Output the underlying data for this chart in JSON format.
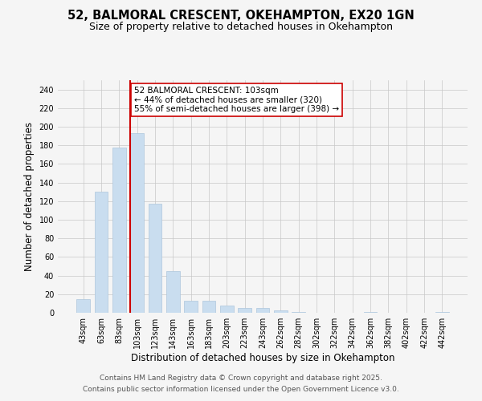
{
  "title1": "52, BALMORAL CRESCENT, OKEHAMPTON, EX20 1GN",
  "title2": "Size of property relative to detached houses in Okehampton",
  "xlabel": "Distribution of detached houses by size in Okehampton",
  "ylabel": "Number of detached properties",
  "categories": [
    "43sqm",
    "63sqm",
    "83sqm",
    "103sqm",
    "123sqm",
    "143sqm",
    "163sqm",
    "183sqm",
    "203sqm",
    "223sqm",
    "243sqm",
    "262sqm",
    "282sqm",
    "302sqm",
    "322sqm",
    "342sqm",
    "362sqm",
    "382sqm",
    "402sqm",
    "422sqm",
    "442sqm"
  ],
  "values": [
    15,
    130,
    178,
    193,
    117,
    45,
    13,
    13,
    8,
    5,
    5,
    3,
    1,
    0,
    0,
    0,
    1,
    0,
    0,
    0,
    1
  ],
  "bar_color": "#c9ddef",
  "bar_edge_color": "#aec6dc",
  "vline_color": "#cc0000",
  "annotation_text": "52 BALMORAL CRESCENT: 103sqm\n← 44% of detached houses are smaller (320)\n55% of semi-detached houses are larger (398) →",
  "annotation_box_color": "#ffffff",
  "annotation_box_edge": "#cc0000",
  "ylim": [
    0,
    250
  ],
  "yticks": [
    0,
    20,
    40,
    60,
    80,
    100,
    120,
    140,
    160,
    180,
    200,
    220,
    240
  ],
  "grid_color": "#c8c8c8",
  "background_color": "#f5f5f5",
  "footer1": "Contains HM Land Registry data © Crown copyright and database right 2025.",
  "footer2": "Contains public sector information licensed under the Open Government Licence v3.0.",
  "title_fontsize": 10.5,
  "subtitle_fontsize": 9,
  "axis_label_fontsize": 8.5,
  "tick_fontsize": 7,
  "annotation_fontsize": 7.5,
  "footer_fontsize": 6.5
}
